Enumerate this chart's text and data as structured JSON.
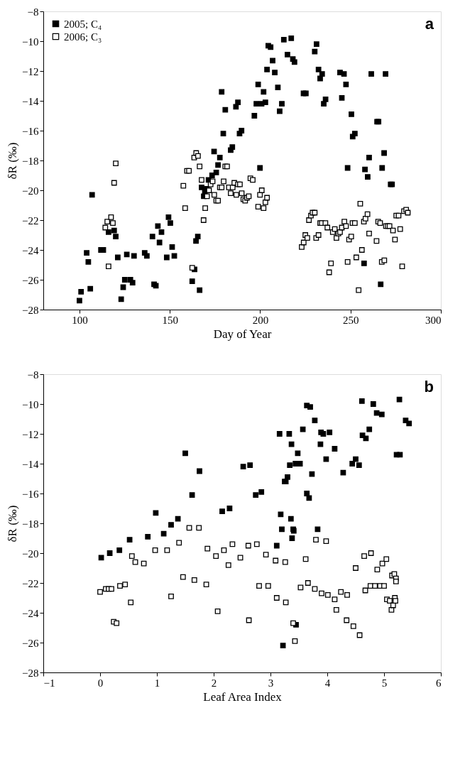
{
  "chart_data": [
    {
      "type": "scatter",
      "xlabel": "Day of Year",
      "ylabel": "δR (‰)",
      "annotations": [
        "a"
      ],
      "marker": "square",
      "legend": "top left",
      "grid": false,
      "xlim": [
        80,
        300
      ],
      "xticks": [
        100,
        150,
        200,
        250,
        300
      ],
      "ylim": [
        -28,
        -8
      ],
      "yticks": [
        -28,
        -26,
        -24,
        -22,
        -20,
        -18,
        -16,
        -14,
        -12,
        -10,
        -8
      ],
      "series": [
        {
          "name": "2005; C₄",
          "color": "#000000",
          "x": [
            100.0,
            100.9,
            104.0,
            104.9,
            106.0,
            107.0,
            111.9,
            113.2,
            116.1,
            119.2,
            120.1,
            121.2,
            123.1,
            124.2,
            125.1,
            126.2,
            128.2,
            129.4,
            130.2,
            136.1,
            137.3,
            141.3,
            142.3,
            140.4,
            143.4,
            144.3,
            145.4,
            148.3,
            149.3,
            150.3,
            151.3,
            152.5,
            162.4,
            163.7,
            164.5,
            165.5,
            166.5,
            167.6,
            168.8,
            169.4,
            170.4,
            171.4,
            173.4,
            174.5,
            175.7,
            176.7,
            177.7,
            178.7,
            179.6,
            180.7,
            183.7,
            184.6,
            186.6,
            187.7,
            188.6,
            189.7,
            196.8,
            197.9,
            198.9,
            199.9,
            200.8,
            201.9,
            202.9,
            203.8,
            204.5,
            205.8,
            206.9,
            208.1,
            209.8,
            210.8,
            212.0,
            213.1,
            215.1,
            217.2,
            218.1,
            219.0,
            224.0,
            225.3,
            230.2,
            231.2,
            232.3,
            233.2,
            234.3,
            235.2,
            236.2,
            244.2,
            245.2,
            246.4,
            247.5,
            248.4,
            250.5,
            251.2,
            252.4,
            257.5,
            258.0,
            259.5,
            260.3,
            261.5,
            264.7,
            265.5,
            266.7,
            267.5,
            268.6,
            269.4,
            272.2,
            273.0
          ],
          "values": [
            -27.4,
            -26.8,
            -24.2,
            -24.8,
            -26.6,
            -20.3,
            -24.0,
            -24.0,
            -22.8,
            -22.7,
            -23.1,
            -24.5,
            -27.3,
            -26.5,
            -26.0,
            -24.3,
            -26.0,
            -26.2,
            -24.4,
            -24.2,
            -24.4,
            -26.3,
            -26.4,
            -23.1,
            -22.4,
            -23.5,
            -22.8,
            -24.5,
            -21.8,
            -22.2,
            -23.8,
            -24.4,
            -26.1,
            -25.3,
            -23.4,
            -23.1,
            -26.7,
            -19.8,
            -20.4,
            -20.1,
            -19.9,
            -19.3,
            -19.0,
            -17.4,
            -18.8,
            -18.3,
            -17.8,
            -13.4,
            -16.2,
            -14.6,
            -17.3,
            -17.1,
            -14.4,
            -14.1,
            -16.2,
            -16.0,
            -15.0,
            -14.2,
            -12.9,
            -18.5,
            -14.2,
            -13.4,
            -14.1,
            -11.9,
            -10.3,
            -10.4,
            -11.3,
            -12.1,
            -13.1,
            -14.7,
            -14.2,
            -9.9,
            -10.9,
            -9.8,
            -11.2,
            -11.4,
            -13.5,
            -13.5,
            -10.7,
            -10.2,
            -11.9,
            -12.5,
            -12.2,
            -14.2,
            -13.9,
            -12.1,
            -13.8,
            -12.2,
            -12.9,
            -18.5,
            -14.9,
            -16.4,
            -16.2,
            -24.9,
            -18.6,
            -19.1,
            -17.8,
            -12.2,
            -15.4,
            -15.4,
            -26.3,
            -18.5,
            -17.5,
            -12.2,
            -19.6,
            -19.6
          ]
        },
        {
          "name": "2006; C₃",
          "color": "#000000",
          "x": [
            116.1,
            114.3,
            115.4,
            117.5,
            118.5,
            119.2,
            120.1,
            157.5,
            158.5,
            159.5,
            160.6,
            162.4,
            163.5,
            164.6,
            165.6,
            166.5,
            167.6,
            168.7,
            169.6,
            170.6,
            171.7,
            172.6,
            173.7,
            174.6,
            175.7,
            176.7,
            177.7,
            178.7,
            179.8,
            180.7,
            181.7,
            182.7,
            183.7,
            184.8,
            185.7,
            186.8,
            187.7,
            188.8,
            189.8,
            190.7,
            191.7,
            192.7,
            193.7,
            194.6,
            195.9,
            198.9,
            199.9,
            200.9,
            201.9,
            202.9,
            203.8,
            223.0,
            224.1,
            225.0,
            226.1,
            227.0,
            228.1,
            229.0,
            230.2,
            231.0,
            232.3,
            233.2,
            234.1,
            236.1,
            237.2,
            238.2,
            239.2,
            240.2,
            241.3,
            242.2,
            243.3,
            244.2,
            245.2,
            246.6,
            247.5,
            248.4,
            249.2,
            250.4,
            251.1,
            252.4,
            253.2,
            254.5,
            255.4,
            256.3,
            257.4,
            258.3,
            259.4,
            260.3,
            264.4,
            265.3,
            266.4,
            267.3,
            268.7,
            269.6,
            270.6,
            271.6,
            273.5,
            274.6,
            275.3,
            276.6,
            277.5,
            278.6,
            279.6,
            280.8,
            281.7
          ],
          "values": [
            -25.1,
            -22.5,
            -22.1,
            -21.8,
            -22.2,
            -19.5,
            -18.2,
            -19.7,
            -21.2,
            -18.7,
            -18.7,
            -25.2,
            -17.8,
            -17.5,
            -17.7,
            -18.4,
            -19.3,
            -22.0,
            -21.2,
            -20.4,
            -20.0,
            -19.6,
            -19.4,
            -20.3,
            -20.7,
            -20.7,
            -19.8,
            -19.8,
            -19.4,
            -18.4,
            -18.4,
            -19.8,
            -20.2,
            -19.8,
            -19.5,
            -20.3,
            -19.6,
            -19.6,
            -20.2,
            -20.6,
            -20.7,
            -20.5,
            -20.4,
            -19.2,
            -19.3,
            -21.1,
            -20.3,
            -20.0,
            -21.2,
            -20.8,
            -20.5,
            -23.8,
            -23.5,
            -23.0,
            -23.2,
            -22.0,
            -21.7,
            -21.5,
            -21.5,
            -23.2,
            -23.0,
            -22.2,
            -22.2,
            -22.2,
            -22.5,
            -25.5,
            -24.9,
            -22.8,
            -22.6,
            -23.2,
            -22.9,
            -22.8,
            -22.5,
            -22.1,
            -22.4,
            -24.8,
            -23.3,
            -23.1,
            -22.2,
            -22.2,
            -24.5,
            -26.7,
            -20.9,
            -24.0,
            -22.1,
            -21.9,
            -21.6,
            -22.9,
            -23.4,
            -22.1,
            -22.2,
            -24.8,
            -24.7,
            -22.4,
            -22.4,
            -22.4,
            -22.7,
            -23.3,
            -21.7,
            -21.7,
            -22.6,
            -25.1,
            -21.4,
            -21.3,
            -21.5
          ]
        }
      ]
    },
    {
      "type": "scatter",
      "xlabel": "Leaf Area Index",
      "ylabel": "δR (‰)",
      "annotations": [
        "b"
      ],
      "marker": "square",
      "legend": "top left",
      "grid": false,
      "xlim": [
        -1,
        6
      ],
      "xticks": [
        -1,
        0,
        1,
        2,
        3,
        4,
        5,
        6
      ],
      "ylim": [
        -28,
        -8
      ],
      "yticks": [
        -28,
        -26,
        -24,
        -22,
        -20,
        -18,
        -16,
        -14,
        -12,
        -10,
        -8
      ],
      "series": [
        {
          "name": "2005; C₄",
          "color": "#000000",
          "x": [
            0.02,
            0.17,
            0.34,
            0.52,
            0.84,
            0.98,
            1.12,
            1.25,
            1.37,
            1.5,
            1.62,
            1.75,
            2.15,
            2.28,
            2.52,
            2.64,
            2.74,
            2.84,
            3.11,
            3.16,
            3.18,
            3.2,
            3.22,
            3.25,
            3.27,
            3.3,
            3.33,
            3.34,
            3.36,
            3.37,
            3.4,
            3.41,
            3.38,
            3.44,
            3.45,
            3.48,
            3.52,
            3.57,
            3.64,
            3.64,
            3.68,
            3.7,
            3.73,
            3.78,
            3.83,
            3.88,
            3.89,
            3.93,
            3.98,
            4.04,
            4.13,
            4.28,
            4.44,
            4.5,
            4.56,
            4.61,
            4.62,
            4.68,
            4.74,
            4.81,
            4.87,
            4.96,
            5.22,
            5.28,
            5.27,
            5.38,
            5.44
          ],
          "values": [
            -20.3,
            -20.0,
            -19.8,
            -19.1,
            -18.9,
            -17.3,
            -18.7,
            -18.1,
            -17.7,
            -13.3,
            -16.1,
            -14.5,
            -17.2,
            -17.0,
            -14.2,
            -14.1,
            -16.1,
            -15.9,
            -19.5,
            -12.0,
            -17.4,
            -18.4,
            -26.2,
            -15.2,
            -15.2,
            -14.9,
            -12.0,
            -14.1,
            -17.7,
            -12.7,
            -18.4,
            -18.5,
            -19.0,
            -14.0,
            -24.8,
            -13.3,
            -14.0,
            -11.7,
            -10.1,
            -16.0,
            -16.3,
            -10.2,
            -14.7,
            -11.1,
            -18.4,
            -12.7,
            -11.9,
            -12.0,
            -13.7,
            -11.9,
            -13.0,
            -14.6,
            -14.0,
            -13.7,
            -14.1,
            -9.8,
            -12.1,
            -12.3,
            -11.7,
            -10.0,
            -10.6,
            -10.7,
            -13.4,
            -13.4,
            -9.7,
            -11.1,
            -11.3
          ]
        },
        {
          "name": "2006; C₃",
          "color": "#000000",
          "x": [
            0.0,
            0.1,
            0.15,
            0.2,
            0.24,
            0.29,
            0.35,
            0.44,
            0.54,
            0.56,
            0.62,
            0.77,
            0.97,
            1.18,
            1.25,
            1.39,
            1.46,
            1.57,
            1.66,
            1.74,
            1.87,
            1.89,
            2.04,
            2.07,
            2.18,
            2.26,
            2.33,
            2.47,
            2.61,
            2.62,
            2.76,
            2.8,
            2.92,
            2.96,
            3.09,
            3.11,
            3.26,
            3.27,
            3.4,
            3.43,
            3.53,
            3.62,
            3.66,
            3.78,
            3.8,
            3.9,
            3.98,
            4.01,
            4.13,
            4.16,
            4.24,
            4.34,
            4.35,
            4.46,
            4.5,
            4.57,
            4.65,
            4.67,
            4.77,
            4.76,
            4.84,
            4.88,
            4.93,
            4.97,
            5.0,
            5.04,
            5.05,
            5.1,
            5.13,
            5.14,
            5.16,
            5.18,
            5.19,
            5.2,
            5.21,
            5.21
          ],
          "values": [
            -22.6,
            -22.4,
            -22.4,
            -22.4,
            -24.6,
            -24.7,
            -22.2,
            -22.1,
            -23.3,
            -20.2,
            -20.6,
            -20.7,
            -19.8,
            -19.8,
            -22.9,
            -19.3,
            -21.6,
            -18.3,
            -21.8,
            -18.3,
            -22.1,
            -19.7,
            -20.2,
            -23.9,
            -19.8,
            -20.8,
            -19.4,
            -20.3,
            -19.5,
            -24.5,
            -19.4,
            -22.2,
            -20.1,
            -22.2,
            -20.5,
            -23.0,
            -20.6,
            -23.3,
            -24.7,
            -25.9,
            -22.3,
            -20.4,
            -22.0,
            -22.4,
            -19.1,
            -22.7,
            -19.2,
            -22.8,
            -23.1,
            -23.8,
            -22.6,
            -24.5,
            -22.8,
            -24.9,
            -21.0,
            -25.5,
            -20.2,
            -22.5,
            -20.0,
            -22.2,
            -22.2,
            -21.1,
            -22.2,
            -20.7,
            -22.2,
            -20.4,
            -23.1,
            -23.2,
            -23.8,
            -21.5,
            -23.5,
            -21.4,
            -23.0,
            -23.2,
            -21.7,
            -21.9
          ]
        }
      ]
    }
  ]
}
